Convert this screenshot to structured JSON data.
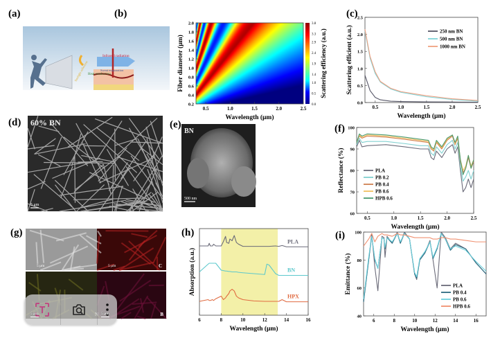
{
  "panels": {
    "a": {
      "label": "(a)",
      "annotations": [
        "Infrared radiation",
        "Sunlight reflection",
        "Sweat evaporation",
        "Heat conduction"
      ]
    },
    "b": {
      "label": "(b)"
    },
    "c": {
      "label": "(c)"
    },
    "d": {
      "label": "(d)",
      "caption": "60% BN",
      "scale": "5 μm"
    },
    "e": {
      "label": "(e)",
      "caption": "BN",
      "scale": "500 nm"
    },
    "f": {
      "label": "(f)"
    },
    "g": {
      "label": "(g)",
      "tiles": [
        {
          "scale": "5 μm",
          "element": ""
        },
        {
          "scale": "5 μm",
          "element": "C"
        },
        {
          "scale": "5 μm",
          "element": "N"
        },
        {
          "scale": "5 μm",
          "element": "B"
        }
      ]
    },
    "h": {
      "label": "(h)"
    },
    "i": {
      "label": "(i)"
    }
  },
  "chart_data": [
    {
      "id": "b",
      "type": "heatmap",
      "xlabel": "Wavelength (μm)",
      "ylabel": "Fiber diameter (μm)",
      "colorbar_label": "Scattering efficiency (a.u.)",
      "xlim": [
        0.3,
        2.5
      ],
      "ylim": [
        0.2,
        2.0
      ],
      "xticks": [
        0.5,
        1.0,
        1.5,
        2.0,
        2.5
      ],
      "yticks": [
        0.2,
        0.4,
        0.6,
        0.8,
        1.0,
        1.2,
        1.4,
        1.6,
        1.8,
        2.0
      ],
      "colorbar_ticks": [
        0.0,
        0.5,
        1.0,
        1.4,
        1.9,
        2.4,
        2.9,
        3.3,
        3.8
      ],
      "colormap": "jet",
      "zlim": [
        0,
        3.8
      ]
    },
    {
      "id": "c",
      "type": "line",
      "xlabel": "Wavelength (μm)",
      "ylabel": "Scattering efficient (a.u.)",
      "xlim": [
        0.3,
        2.5
      ],
      "ylim": [
        0,
        2.5
      ],
      "xticks": [
        0.5,
        1.0,
        1.5,
        2.0,
        2.5
      ],
      "yticks": [
        0.0,
        0.5,
        1.0,
        1.5,
        2.0,
        2.5
      ],
      "legend": "top-right",
      "x": [
        0.3,
        0.4,
        0.5,
        0.6,
        0.8,
        1.0,
        1.5,
        2.0,
        2.5
      ],
      "series": [
        {
          "name": "250 nm BN",
          "color": "#555566",
          "values": [
            0.8,
            0.35,
            0.15,
            0.08,
            0.04,
            0.03,
            0.02,
            0.015,
            0.01
          ]
        },
        {
          "name": "500 nm BN",
          "color": "#7fd3d8",
          "values": [
            2.1,
            1.3,
            0.85,
            0.6,
            0.4,
            0.3,
            0.17,
            0.09,
            0.04
          ]
        },
        {
          "name": "1000 nm BN",
          "color": "#f0a080",
          "values": [
            2.15,
            1.35,
            0.9,
            0.62,
            0.42,
            0.32,
            0.2,
            0.11,
            0.06
          ]
        }
      ]
    },
    {
      "id": "f",
      "type": "line",
      "xlabel": "Wavelength (μm)",
      "ylabel": "Reflectance (%)",
      "xlim": [
        0.3,
        2.5
      ],
      "ylim": [
        60,
        100
      ],
      "xticks": [
        0.5,
        1.0,
        1.5,
        2.0,
        2.5
      ],
      "yticks": [
        60,
        70,
        80,
        90,
        100
      ],
      "legend": "bottom-left",
      "x": [
        0.3,
        0.35,
        0.4,
        0.5,
        0.85,
        1.2,
        1.5,
        1.65,
        1.7,
        1.75,
        1.8,
        1.9,
        2.0,
        2.1,
        2.15,
        2.2,
        2.25,
        2.3,
        2.35,
        2.4,
        2.45,
        2.5
      ],
      "series": [
        {
          "name": "PLA",
          "color": "#6a6a78",
          "values": [
            91,
            94,
            91,
            91.5,
            92,
            91,
            90,
            90,
            86,
            85,
            89,
            86,
            90,
            92,
            88,
            91,
            80,
            70,
            72,
            76,
            72,
            76
          ]
        },
        {
          "name": "PB 0.2",
          "color": "#80d0d0",
          "values": [
            92,
            95,
            93,
            93.5,
            93.5,
            92.5,
            91.5,
            91.5,
            88,
            87,
            91,
            88,
            92,
            94,
            90,
            93,
            82,
            75,
            77,
            80,
            76,
            80
          ]
        },
        {
          "name": "PB 0.4",
          "color": "#d08050",
          "values": [
            93,
            96,
            95,
            96,
            95.5,
            94.5,
            93.5,
            93,
            90,
            89,
            93,
            90,
            94,
            96,
            92,
            95,
            84,
            79,
            81,
            86,
            81,
            84
          ]
        },
        {
          "name": "PB 0.6",
          "color": "#f0c060",
          "values": [
            93,
            96.5,
            95.5,
            96.5,
            96,
            95,
            94,
            93.5,
            90.5,
            89.5,
            93.5,
            90.5,
            94.5,
            96.5,
            92.5,
            95.5,
            85,
            80,
            82,
            87,
            82,
            85
          ]
        },
        {
          "name": "HPB 0.6",
          "color": "#4a9a70",
          "values": [
            93,
            97,
            96,
            97,
            96.5,
            95.5,
            94.5,
            94,
            91,
            90,
            94,
            91,
            95,
            96.5,
            93,
            96,
            85,
            78,
            81,
            87,
            81,
            85
          ]
        }
      ]
    },
    {
      "id": "h",
      "type": "line",
      "xlabel": "Wavelength (μm)",
      "ylabel": "Absorption (a.u.)",
      "xlim": [
        6,
        16
      ],
      "ylim": [
        0,
        10
      ],
      "xticks": [
        6,
        8,
        10,
        12,
        14,
        16
      ],
      "shaded_band": [
        8,
        13.2
      ],
      "shade_color": "#f3f0a8",
      "legend": "inline-right",
      "x": [
        6,
        6.8,
        6.9,
        7.0,
        7.2,
        7.3,
        7.5,
        8.0,
        8.2,
        8.4,
        8.5,
        8.7,
        8.8,
        9.0,
        9.2,
        9.4,
        9.6,
        10,
        11,
        12,
        12.2,
        12.4,
        13,
        13.3,
        13.6,
        14,
        16
      ],
      "series": [
        {
          "name": "PLA",
          "color": "#6a6a78",
          "values": [
            8,
            8,
            8.3,
            8,
            8,
            8.2,
            8,
            8,
            8.5,
            9.1,
            8.4,
            8.3,
            8.8,
            8.6,
            9.2,
            8.4,
            8.2,
            7.95,
            7.95,
            7.95,
            7.95,
            7.95,
            8,
            7.95,
            8.05,
            7.9,
            7.9
          ]
        },
        {
          "name": "BN",
          "color": "#5cc8cc",
          "values": [
            5,
            5.9,
            6,
            6,
            6,
            6,
            6,
            5.2,
            5.15,
            5.1,
            5.1,
            5.05,
            5.05,
            5,
            5,
            5,
            4.95,
            4.9,
            4.8,
            4.7,
            5.9,
            5.8,
            4.8,
            4.6,
            4.6,
            4.6,
            4.6
          ]
        },
        {
          "name": "HPX",
          "color": "#e06a40",
          "values": [
            1.6,
            1.8,
            1.7,
            1.7,
            1.8,
            1.7,
            1.9,
            2.2,
            1.8,
            2.0,
            2.2,
            2.5,
            2.8,
            3.0,
            2.8,
            2.2,
            2.0,
            1.8,
            1.65,
            1.6,
            1.6,
            1.6,
            1.6,
            1.6,
            1.8,
            1.55,
            1.55
          ]
        }
      ]
    },
    {
      "id": "i",
      "type": "line",
      "xlabel": "Wavelength (μm)",
      "ylabel": "Emittance (%)",
      "xlim": [
        5,
        17
      ],
      "ylim": [
        40,
        100
      ],
      "xticks": [
        6,
        8,
        10,
        12,
        14,
        16
      ],
      "yticks": [
        40,
        60,
        80,
        100
      ],
      "legend": "bottom-right",
      "x": [
        5,
        5.5,
        5.8,
        6.1,
        6.4,
        6.8,
        7.0,
        7.1,
        7.3,
        7.8,
        8.3,
        8.6,
        9.0,
        9.5,
        10,
        10.2,
        10.5,
        11,
        11.5,
        11.8,
        12.2,
        12.6,
        13,
        13.5,
        14,
        15,
        16,
        17
      ],
      "series": [
        {
          "name": "PLA",
          "color": "#6a6a78",
          "values": [
            50,
            80,
            99,
            75,
            58,
            97,
            96,
            82,
            97,
            92,
            100,
            92,
            100,
            95,
            70,
            66,
            80,
            85,
            94,
            80,
            60,
            100,
            96,
            88,
            92,
            88,
            78,
            70
          ]
        },
        {
          "name": "PB 0.4",
          "color": "#2a6a80",
          "values": [
            50,
            80,
            97,
            80,
            74,
            96,
            95,
            88,
            96,
            92,
            99,
            92,
            99,
            95,
            70,
            67,
            80,
            85,
            93,
            81,
            88,
            99,
            95,
            87,
            91,
            88,
            78,
            70
          ]
        },
        {
          "name": "PB 0.6",
          "color": "#6cd0dc",
          "values": [
            52,
            82,
            97,
            81,
            74,
            96,
            95,
            89,
            96,
            93,
            99,
            93,
            99,
            95,
            71,
            68,
            81,
            86,
            93,
            82,
            89,
            99,
            95,
            88,
            90,
            87,
            79,
            72
          ]
        },
        {
          "name": "HPB 0.6",
          "color": "#f09070",
          "values": [
            90,
            95,
            99,
            93,
            97,
            99,
            98,
            98,
            98,
            97,
            99,
            98,
            98,
            97,
            96,
            96,
            96,
            96,
            96,
            95,
            95,
            96,
            96,
            95,
            95,
            94,
            93,
            93
          ]
        }
      ]
    }
  ],
  "lens_toolbar": {
    "buttons": [
      {
        "name": "text-select",
        "icon": "text-scan-icon",
        "color": "#c04080"
      },
      {
        "name": "visual-search",
        "icon": "lens-camera-icon"
      },
      {
        "name": "more",
        "icon": "more-vertical-icon"
      }
    ]
  }
}
